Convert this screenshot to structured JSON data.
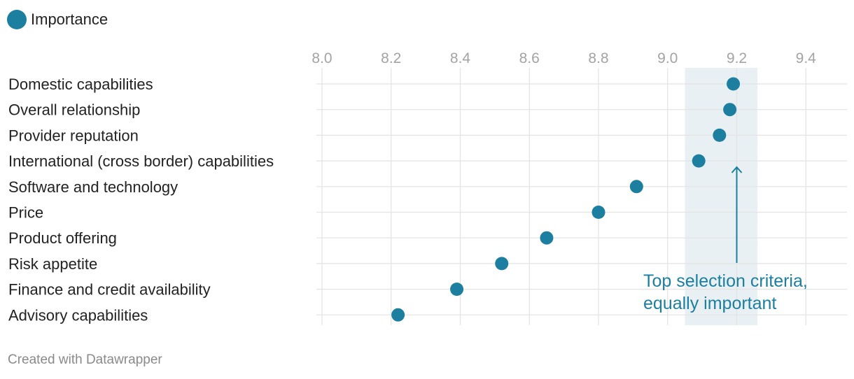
{
  "legend": {
    "label": "Importance",
    "color": "#1c7fa0"
  },
  "chart_data": {
    "type": "scatter",
    "title": "",
    "xlabel": "",
    "ylabel": "",
    "xlim": [
      8.0,
      9.5
    ],
    "xticks": [
      "8.0",
      "8.2",
      "8.4",
      "8.6",
      "8.8",
      "9.0",
      "9.2",
      "9.4"
    ],
    "xtick_values": [
      8.0,
      8.2,
      8.4,
      8.6,
      8.8,
      9.0,
      9.2,
      9.4
    ],
    "grid": true,
    "legend_position": "top-left",
    "categories": [
      "Domestic capabilities",
      "Overall relationship",
      "Provider reputation",
      "International (cross border) capabilities",
      "Software and technology",
      "Price",
      "Product offering",
      "Risk appetite",
      "Finance and credit availability",
      "Advisory capabilities"
    ],
    "series": [
      {
        "name": "Importance",
        "color": "#1c7fa0",
        "values": [
          9.19,
          9.18,
          9.15,
          9.09,
          8.91,
          8.8,
          8.65,
          8.52,
          8.39,
          8.22
        ]
      }
    ],
    "highlight_band": {
      "x_range": [
        9.05,
        9.26
      ],
      "color": "#e8f0f4"
    },
    "annotation": {
      "lines": [
        "Top selection criteria,",
        "equally important"
      ],
      "color": "#1c7fa0",
      "points_to_x": 9.2
    }
  },
  "footer": {
    "credit": "Created with Datawrapper"
  }
}
